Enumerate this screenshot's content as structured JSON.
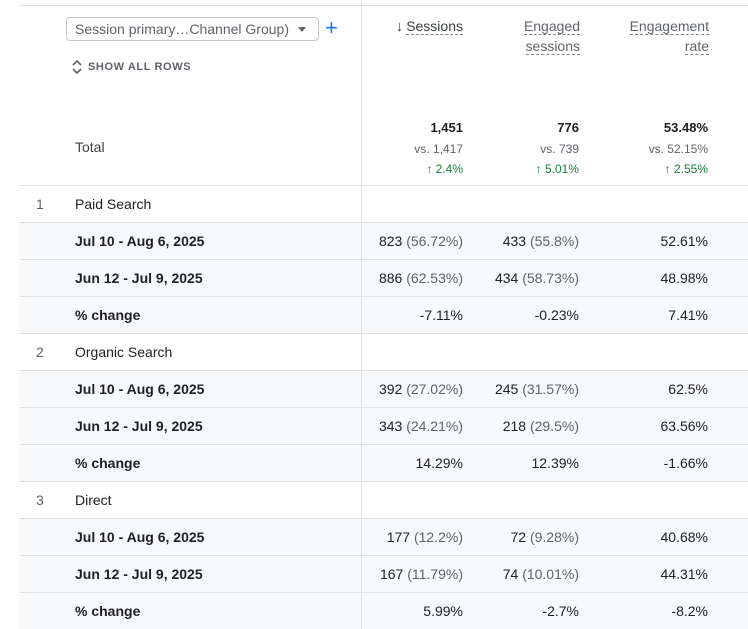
{
  "dimension": {
    "selected": "Session primary…Channel Group)"
  },
  "show_all_rows": "SHOW ALL ROWS",
  "columns": [
    {
      "label_lines": [
        "Sessions"
      ],
      "sorted": true
    },
    {
      "label_lines": [
        "Engaged",
        "sessions"
      ]
    },
    {
      "label_lines": [
        "Engagement",
        "rate"
      ]
    }
  ],
  "total": {
    "label": "Total",
    "values": [
      "1,451",
      "776",
      "53.48%"
    ],
    "vs": [
      "vs. 1,417",
      "vs. 739",
      "vs. 52.15%"
    ],
    "change": [
      "↑ 2.4%",
      "↑ 5.01%",
      "↑ 2.55%"
    ]
  },
  "groups": [
    {
      "index": "1",
      "name": "Paid Search",
      "rows": [
        {
          "label": "Jul 10 - Aug 6, 2025",
          "sessions": "823",
          "sessions_pct": "(56.72%)",
          "engaged": "433",
          "engaged_pct": "(55.8%)",
          "rate": "52.61%"
        },
        {
          "label": "Jun 12 - Jul 9, 2025",
          "sessions": "886",
          "sessions_pct": "(62.53%)",
          "engaged": "434",
          "engaged_pct": "(58.73%)",
          "rate": "48.98%"
        },
        {
          "label": "% change",
          "sessions": "-7.11%",
          "sessions_pct": "",
          "engaged": "-0.23%",
          "engaged_pct": "",
          "rate": "7.41%"
        }
      ]
    },
    {
      "index": "2",
      "name": "Organic Search",
      "rows": [
        {
          "label": "Jul 10 - Aug 6, 2025",
          "sessions": "392",
          "sessions_pct": "(27.02%)",
          "engaged": "245",
          "engaged_pct": "(31.57%)",
          "rate": "62.5%"
        },
        {
          "label": "Jun 12 - Jul 9, 2025",
          "sessions": "343",
          "sessions_pct": "(24.21%)",
          "engaged": "218",
          "engaged_pct": "(29.5%)",
          "rate": "63.56%"
        },
        {
          "label": "% change",
          "sessions": "14.29%",
          "sessions_pct": "",
          "engaged": "12.39%",
          "engaged_pct": "",
          "rate": "-1.66%"
        }
      ]
    },
    {
      "index": "3",
      "name": "Direct",
      "rows": [
        {
          "label": "Jul 10 - Aug 6, 2025",
          "sessions": "177",
          "sessions_pct": "(12.2%)",
          "engaged": "72",
          "engaged_pct": "(9.28%)",
          "rate": "40.68%"
        },
        {
          "label": "Jun 12 - Jul 9, 2025",
          "sessions": "167",
          "sessions_pct": "(11.79%)",
          "engaged": "74",
          "engaged_pct": "(10.01%)",
          "rate": "44.31%"
        },
        {
          "label": "% change",
          "sessions": "5.99%",
          "sessions_pct": "",
          "engaged": "-2.7%",
          "engaged_pct": "",
          "rate": "-8.2%"
        }
      ]
    }
  ]
}
